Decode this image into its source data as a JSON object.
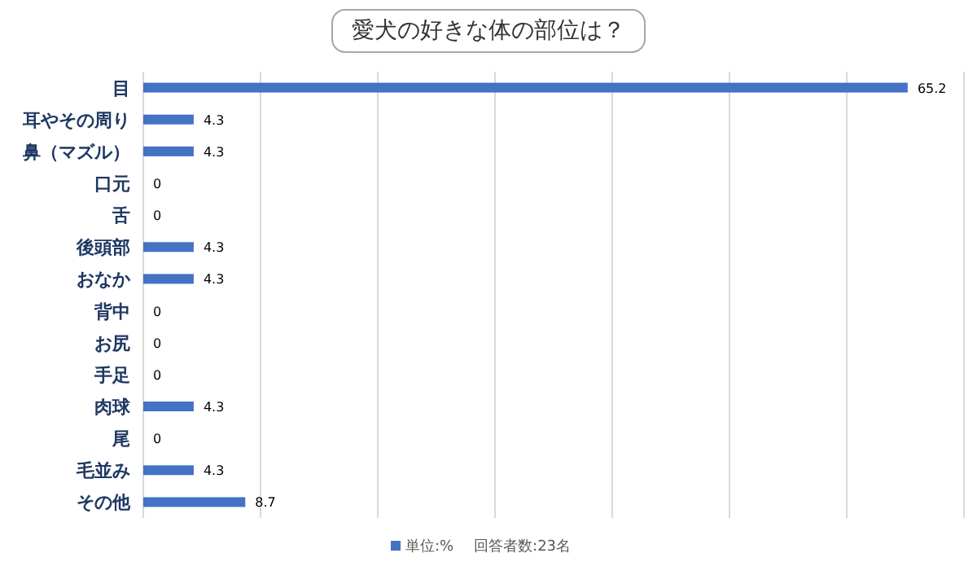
{
  "chart_data": {
    "type": "bar",
    "orientation": "horizontal",
    "title": "愛犬の好きな体の部位は？",
    "categories": [
      "目",
      "耳やその周り",
      "鼻（マズル）",
      "口元",
      "舌",
      "後頭部",
      "おなか",
      "背中",
      "お尻",
      "手足",
      "肉球",
      "尾",
      "毛並み",
      "その他"
    ],
    "series": [
      {
        "name": "単位:%",
        "color": "#4472c4",
        "values": [
          65.2,
          4.3,
          4.3,
          0,
          0,
          4.3,
          4.3,
          0,
          0,
          0,
          4.3,
          0,
          4.3,
          8.7
        ]
      }
    ],
    "xlim": [
      0,
      70
    ],
    "xticks": [
      {
        "value": 0,
        "label": null
      },
      {
        "value": 10,
        "label": null
      },
      {
        "value": 20,
        "label": null
      },
      {
        "value": 30,
        "label": null
      },
      {
        "value": 40,
        "label": null
      },
      {
        "value": 50,
        "label": null
      },
      {
        "value": 60,
        "label": null
      },
      {
        "value": 70,
        "label": null
      }
    ],
    "tick_labels": "y",
    "grid": "x",
    "data_labels": true,
    "legend": "bottom",
    "annotations": [
      "回答者数:23名"
    ]
  }
}
